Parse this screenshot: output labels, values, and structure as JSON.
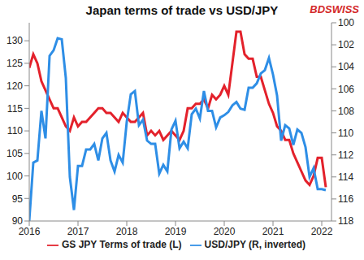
{
  "chart_data": {
    "type": "line",
    "title": "Japan terms of trade vs USD/JPY",
    "annotations": [
      "BDSWISS"
    ],
    "x": [
      2016,
      2016.083,
      2016.167,
      2016.25,
      2016.333,
      2016.417,
      2016.5,
      2016.583,
      2016.667,
      2016.75,
      2016.833,
      2016.917,
      2017,
      2017.083,
      2017.167,
      2017.25,
      2017.333,
      2017.417,
      2017.5,
      2017.583,
      2017.667,
      2017.75,
      2017.833,
      2017.917,
      2018,
      2018.083,
      2018.167,
      2018.25,
      2018.333,
      2018.417,
      2018.5,
      2018.583,
      2018.667,
      2018.75,
      2018.833,
      2018.917,
      2019,
      2019.083,
      2019.167,
      2019.25,
      2019.333,
      2019.417,
      2019.5,
      2019.583,
      2019.667,
      2019.75,
      2019.833,
      2019.917,
      2020,
      2020.083,
      2020.167,
      2020.25,
      2020.333,
      2020.417,
      2020.5,
      2020.583,
      2020.667,
      2020.75,
      2020.833,
      2020.917,
      2021,
      2021.083,
      2021.167,
      2021.25,
      2021.333,
      2021.417,
      2021.5,
      2021.583,
      2021.667,
      2021.75,
      2021.833,
      2021.917,
      2022,
      2022.083
    ],
    "series": [
      {
        "name": "GS JPY Terms of trade (L)",
        "color": "#e3212b",
        "values": [
          124,
          127,
          125,
          121,
          119,
          117,
          115,
          115,
          113,
          111,
          110,
          113,
          111,
          112,
          112,
          113,
          114,
          115,
          115,
          114,
          114,
          113,
          112,
          114,
          113,
          112,
          112,
          113,
          114,
          109,
          110,
          109,
          110,
          108,
          109,
          110,
          109,
          108,
          110,
          115,
          115,
          116,
          116,
          117,
          115,
          118,
          117,
          118,
          120,
          118,
          125,
          132,
          132,
          127,
          126,
          126,
          122,
          122,
          119,
          116,
          114,
          111,
          110,
          108,
          108,
          105,
          103,
          101,
          99,
          98,
          100,
          104,
          104,
          97.5
        ]
      },
      {
        "name": "USD/JPY (R, inverted)",
        "color": "#2e8ee6",
        "axis": "y2",
        "values": [
          118,
          112.7,
          112.5,
          108,
          110.5,
          103,
          102.5,
          101.4,
          101.5,
          105,
          114,
          117,
          113,
          113,
          111.5,
          111.5,
          111,
          112.5,
          110.5,
          110,
          112.5,
          113.5,
          112,
          112.7,
          109,
          106.5,
          106.2,
          109.3,
          108.8,
          110.7,
          111,
          111,
          113.7,
          112.9,
          113.5,
          109.7,
          108.9,
          111.4,
          110.8,
          111.4,
          108.3,
          107.8,
          108.7,
          106.2,
          108,
          108,
          109.5,
          108.6,
          108.4,
          108.1,
          107.5,
          107.2,
          107.8,
          107.9,
          105.9,
          105.9,
          105.5,
          104.6,
          104.3,
          103.2,
          104.7,
          106.6,
          110.7,
          109.3,
          109.6,
          111.1,
          109.7,
          110,
          111.3,
          114,
          113.2,
          115.1,
          115.1,
          115.2
        ]
      }
    ],
    "xlim": [
      2016,
      2022.2
    ],
    "xticks": [
      2016,
      2017,
      2018,
      2019,
      2020,
      2021,
      2022
    ],
    "ylim": [
      90,
      134
    ],
    "yticks": [
      90,
      95,
      100,
      105,
      110,
      115,
      120,
      125,
      130
    ],
    "y2lim": [
      118,
      100
    ],
    "y2ticks": [
      100,
      102,
      104,
      106,
      108,
      110,
      112,
      114,
      116,
      118
    ],
    "grid": false,
    "legend": "bottom"
  }
}
